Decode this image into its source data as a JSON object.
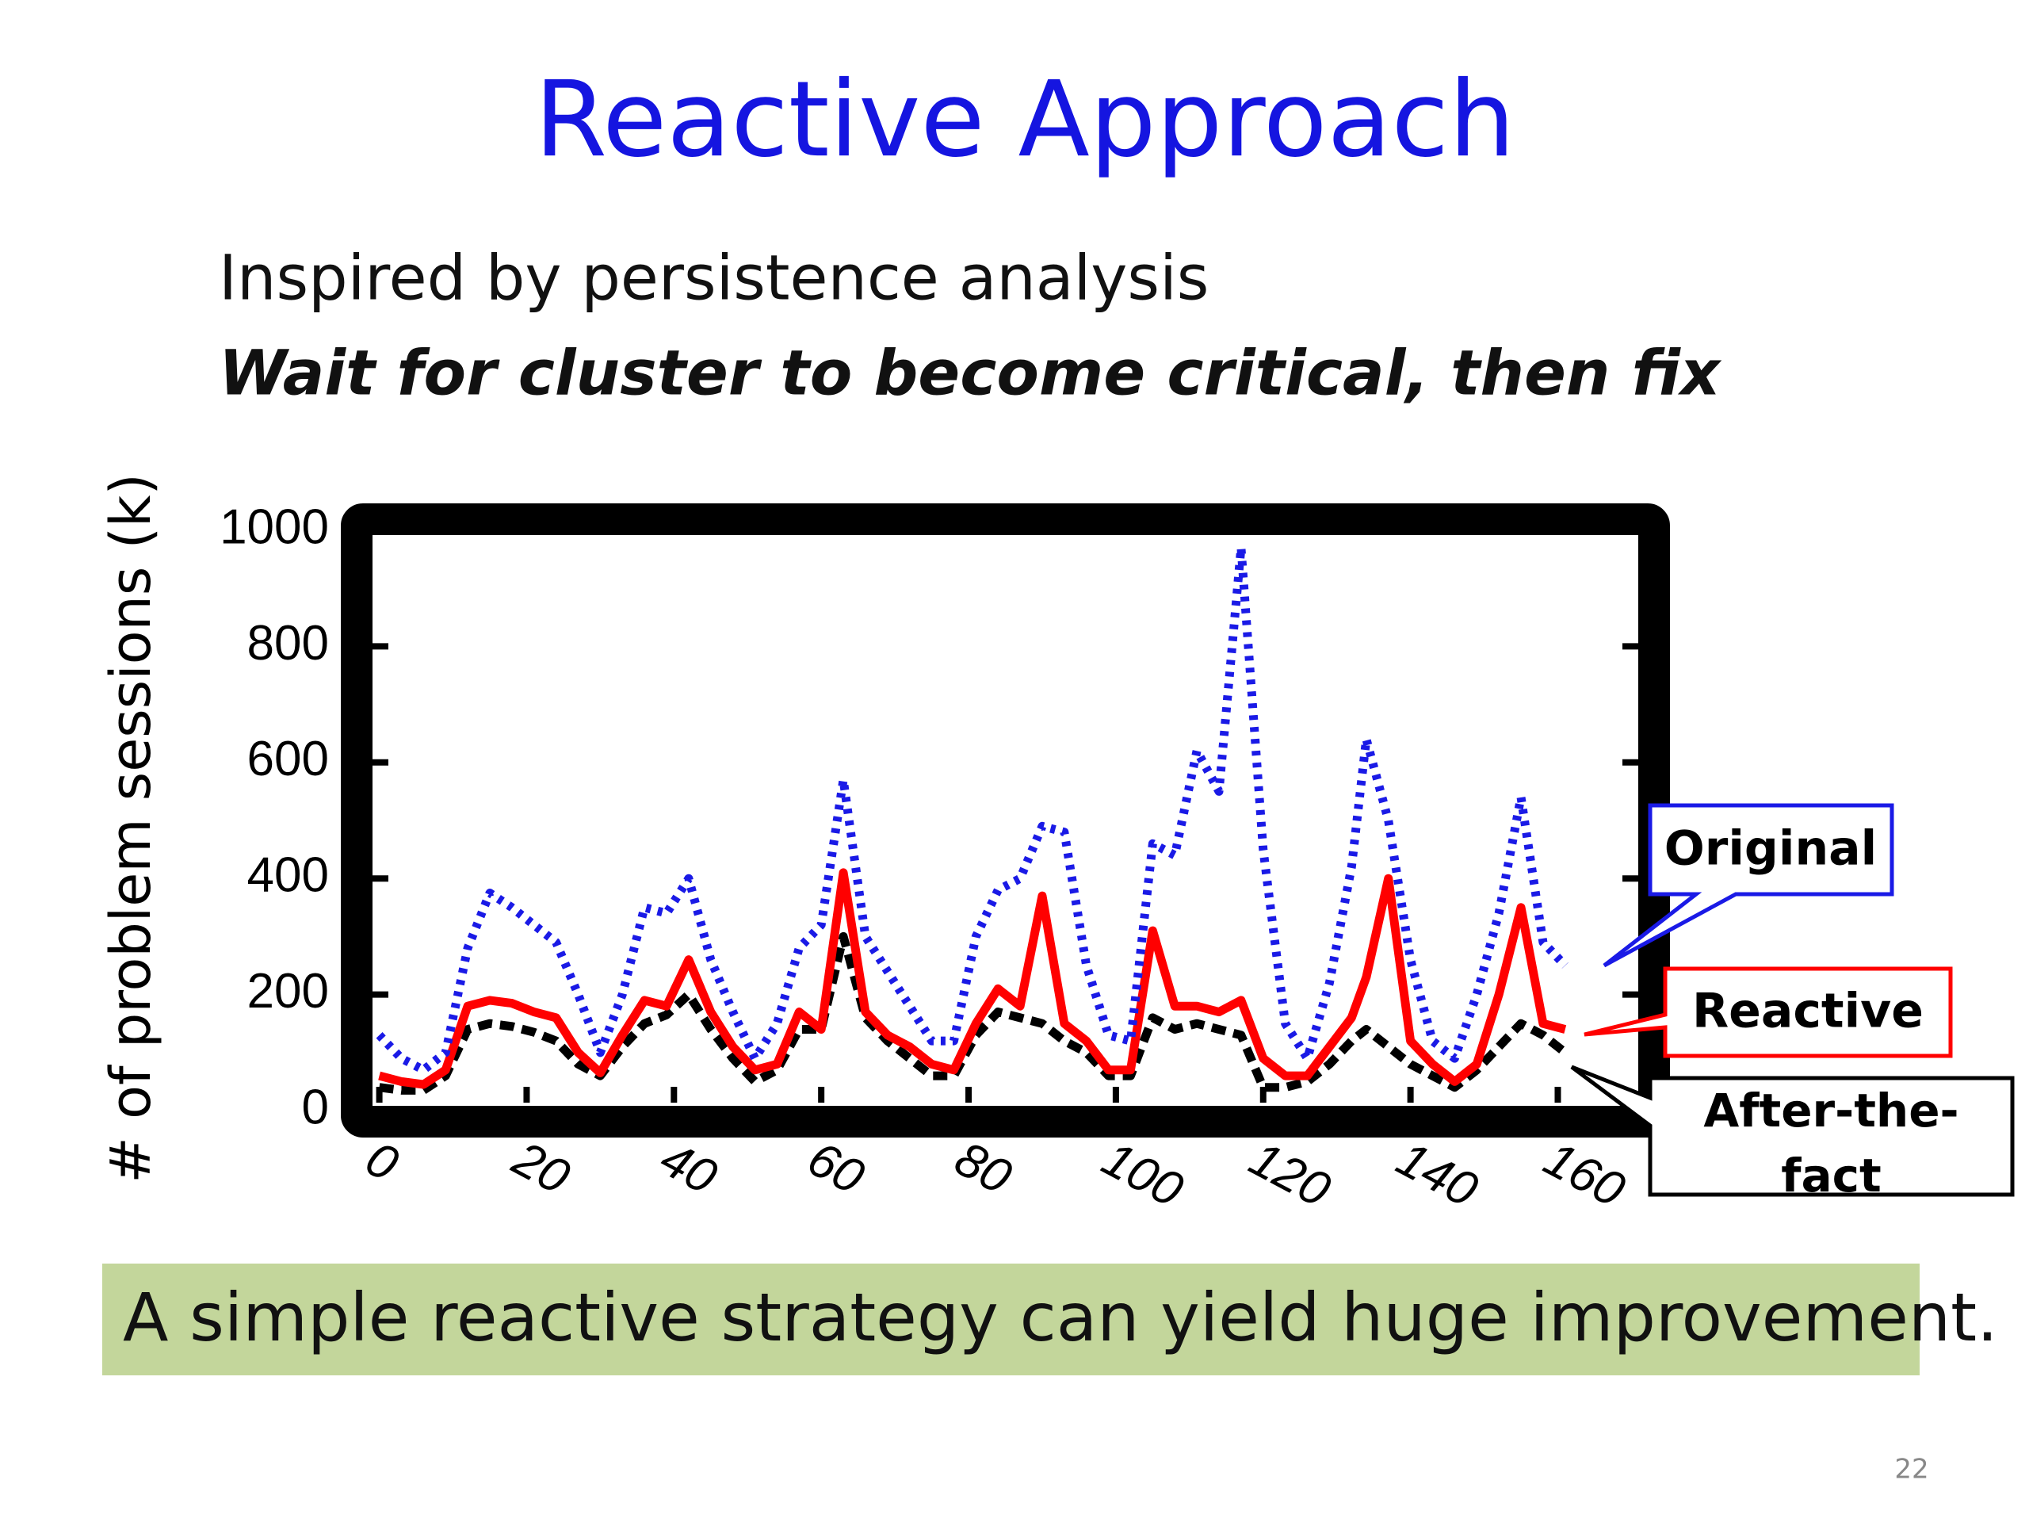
{
  "slide": {
    "title": "Reactive Approach",
    "bullets": [
      "Inspired by persistence analysis",
      "Wait for cluster to become critical, then fix"
    ],
    "note": "A simple reactive strategy can yield huge improvement.",
    "page_number": "22"
  },
  "chart_data": {
    "type": "line",
    "y_label": "# of problem sessions (k)",
    "x": [
      0,
      3,
      6,
      9,
      12,
      15,
      18,
      21,
      24,
      27,
      30,
      33,
      36,
      39,
      42,
      45,
      48,
      51,
      54,
      57,
      60,
      63,
      66,
      69,
      72,
      75,
      78,
      81,
      84,
      87,
      90,
      93,
      96,
      99,
      102,
      105,
      108,
      111,
      114,
      117,
      120,
      123,
      126,
      129,
      132,
      134,
      137,
      140,
      143,
      146,
      149,
      152,
      155,
      158,
      161
    ],
    "series": [
      {
        "name": "Original",
        "color": "#1a1ae6",
        "dash": "dotted",
        "values": [
          130,
          90,
          70,
          100,
          280,
          375,
          350,
          320,
          290,
          200,
          100,
          200,
          350,
          340,
          400,
          260,
          170,
          90,
          150,
          280,
          320,
          570,
          300,
          240,
          180,
          120,
          120,
          300,
          380,
          400,
          490,
          480,
          250,
          130,
          120,
          460,
          440,
          620,
          550,
          970,
          450,
          150,
          90,
          220,
          420,
          640,
          500,
          260,
          120,
          90,
          200,
          340,
          540,
          290,
          250
        ]
      },
      {
        "name": "Reactive",
        "color": "#ff0000",
        "dash": "solid",
        "values": [
          60,
          50,
          45,
          70,
          180,
          190,
          185,
          170,
          160,
          100,
          65,
          130,
          190,
          180,
          260,
          170,
          110,
          70,
          80,
          170,
          140,
          410,
          170,
          130,
          110,
          80,
          70,
          150,
          210,
          180,
          370,
          150,
          120,
          70,
          70,
          310,
          180,
          180,
          170,
          190,
          90,
          60,
          60,
          110,
          160,
          230,
          400,
          120,
          80,
          50,
          80,
          200,
          350,
          150,
          140
        ]
      },
      {
        "name": "After-the-fact",
        "color": "#000000",
        "dash": "dashed",
        "values": [
          40,
          35,
          35,
          60,
          140,
          150,
          145,
          135,
          120,
          80,
          60,
          110,
          150,
          165,
          200,
          140,
          90,
          50,
          70,
          140,
          140,
          300,
          160,
          120,
          90,
          60,
          60,
          130,
          170,
          160,
          150,
          120,
          100,
          60,
          60,
          160,
          140,
          150,
          140,
          130,
          40,
          40,
          50,
          80,
          120,
          140,
          110,
          80,
          60,
          40,
          70,
          110,
          150,
          130,
          100
        ]
      }
    ],
    "xlim": [
      -2,
      172
    ],
    "ylim": [
      0,
      1000
    ],
    "xticks": [
      0,
      20,
      40,
      60,
      80,
      100,
      120,
      140,
      160
    ],
    "yticks": [
      0,
      200,
      400,
      600,
      800,
      1000
    ],
    "grid": false
  }
}
